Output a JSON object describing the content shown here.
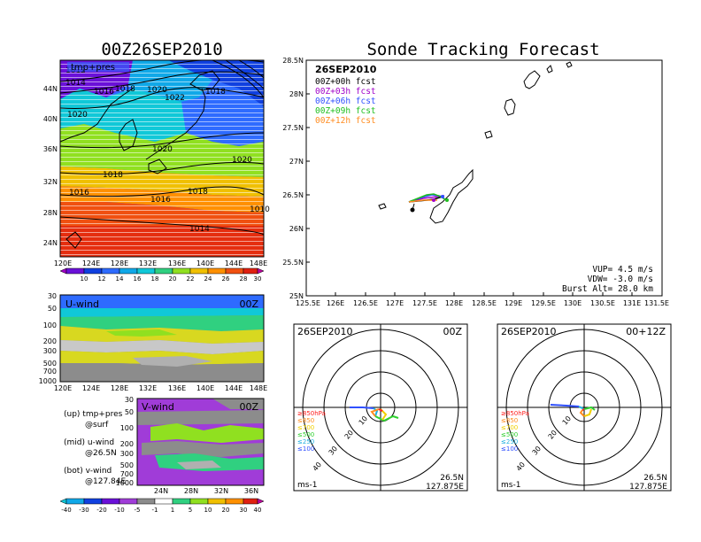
{
  "left": {
    "title": "00Z26SEP2010",
    "top_map": {
      "label": "tmp+pres",
      "lat_ticks": [
        "44N",
        "40N",
        "36N",
        "32N",
        "28N",
        "24N"
      ],
      "lon_ticks": [
        "120E",
        "124E",
        "128E",
        "132E",
        "136E",
        "140E",
        "144E",
        "148E"
      ],
      "isobar_labels": [
        "1012",
        "1014",
        "1016",
        "1018",
        "1020",
        "1022",
        "1018",
        "1020",
        "1020",
        "1018",
        "1020",
        "1016",
        "1016",
        "1018",
        "1014",
        "1010"
      ],
      "colorbar_labels": [
        "10",
        "12",
        "14",
        "16",
        "18",
        "20",
        "22",
        "24",
        "26",
        "28",
        "30"
      ]
    },
    "mid_panel": {
      "label": "U-wind",
      "time": "00Z",
      "pressure_ticks": [
        "30",
        "50",
        "100",
        "200",
        "300",
        "500",
        "700",
        "1000"
      ],
      "lon_ticks": [
        "120E",
        "124E",
        "128E",
        "132E",
        "136E",
        "140E",
        "144E",
        "148E"
      ]
    },
    "bottom_panel": {
      "label": "V-wind",
      "time": "00Z",
      "pressure_ticks": [
        "30",
        "50",
        "100",
        "200",
        "300",
        "500",
        "700",
        "1000"
      ],
      "lat_ticks": [
        "24N",
        "28N",
        "32N",
        "36N"
      ],
      "colorbar_labels": [
        "-40",
        "-30",
        "-20",
        "-10",
        "-5",
        "-1",
        "1",
        "5",
        "10",
        "20",
        "30",
        "40"
      ]
    },
    "legend_notes": [
      {
        "title": "(up) tmp+pres",
        "sub": "@surf"
      },
      {
        "title": "(mid) u-wind",
        "sub": "@26.5N"
      },
      {
        "title": "(bot) v-wind",
        "sub": "@127.84E"
      }
    ]
  },
  "right": {
    "title": "Sonde Tracking Forecast",
    "map": {
      "date": "26SEP2010",
      "forecasts": [
        {
          "label": "00Z+00h  fcst",
          "color": "#000000"
        },
        {
          "label": "00Z+03h  fcst",
          "color": "#a000c8"
        },
        {
          "label": "00Z+06h  fcst",
          "color": "#3050ff"
        },
        {
          "label": "00Z+09h  fcst",
          "color": "#20c020"
        },
        {
          "label": "00Z+12h  fcst",
          "color": "#ff8c20"
        }
      ],
      "lat_ticks": [
        "28.5N",
        "28N",
        "27.5N",
        "27N",
        "26.5N",
        "26N",
        "25.5N",
        "25N"
      ],
      "lon_ticks": [
        "125.5E",
        "126E",
        "126.5E",
        "127E",
        "127.5E",
        "128E",
        "128.5E",
        "129E",
        "129.5E",
        "130E",
        "130.5E",
        "131E",
        "131.5E"
      ],
      "vup": "VUP=  4.5  m/s",
      "vdw": "VDW=  -3.0  m/s",
      "burst": "Burst Alt=  28.0  km"
    },
    "hodographs": [
      {
        "date": "26SEP2010",
        "time": "00Z",
        "ring_labels": [
          "10",
          "20",
          "30",
          "40"
        ],
        "pressure_legend": [
          {
            "label": "≥850hPa",
            "color": "#ff2020"
          },
          {
            "label": "≤850",
            "color": "#ff8c20"
          },
          {
            "label": "≤700",
            "color": "#f0d000"
          },
          {
            "label": "≤500",
            "color": "#30d030"
          },
          {
            "label": "≤250",
            "color": "#20b0e0"
          },
          {
            "label": "≤100",
            "color": "#3050ff"
          }
        ],
        "units": "ms-1",
        "loc_lat": "26.5N",
        "loc_lon": "127.875E"
      },
      {
        "date": "26SEP2010",
        "time": "00+12Z",
        "ring_labels": [
          "10",
          "20",
          "30",
          "40"
        ],
        "pressure_legend": [
          {
            "label": "≥850hPa",
            "color": "#ff2020"
          },
          {
            "label": "≤850",
            "color": "#ff8c20"
          },
          {
            "label": "≤700",
            "color": "#f0d000"
          },
          {
            "label": "≤500",
            "color": "#30d030"
          },
          {
            "label": "≤250",
            "color": "#20b0e0"
          },
          {
            "label": "≤100",
            "color": "#3050ff"
          }
        ],
        "units": "ms-1",
        "loc_lat": "26.5N",
        "loc_lon": "127.875E"
      }
    ]
  },
  "chart_data": [
    {
      "type": "heatmap",
      "title": "00Z26SEP2010",
      "xlabel": "",
      "ylabel": "",
      "x_range": [
        "120E",
        "148E"
      ],
      "y_range": [
        "22N",
        "48N"
      ],
      "colorbar": [
        10,
        12,
        14,
        16,
        18,
        20,
        22,
        24,
        26,
        28,
        30
      ]
    },
    {
      "type": "heatmap",
      "title": "U-wind",
      "x_range": [
        "120E",
        "148E"
      ],
      "y_range": [
        1000,
        30
      ],
      "y_scale": "log-pressure"
    },
    {
      "type": "heatmap",
      "title": "V-wind",
      "x_range": [
        "22N",
        "38N"
      ],
      "y_range": [
        1000,
        30
      ],
      "y_scale": "log-pressure",
      "colorbar": [
        -40,
        -30,
        -20,
        -10,
        -5,
        -1,
        1,
        5,
        10,
        20,
        30,
        40
      ]
    },
    {
      "type": "line",
      "title": "Sonde Tracking Forecast",
      "xlim": [
        125.5,
        131.5
      ],
      "ylim": [
        25,
        28.5
      ]
    }
  ]
}
